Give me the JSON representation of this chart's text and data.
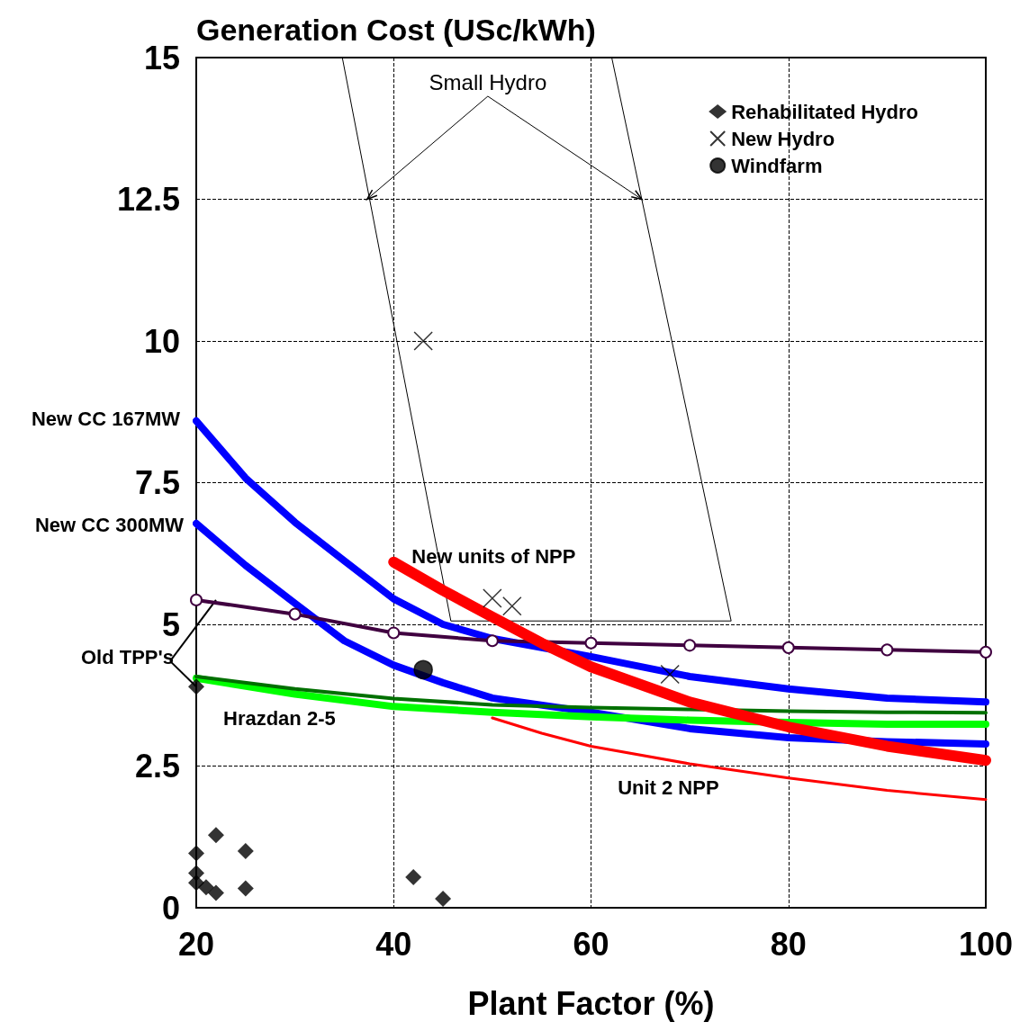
{
  "chart_data": {
    "type": "line",
    "ylabel": "Generation Cost (USc/kWh)",
    "xlabel": "Plant Factor (%)",
    "xlim": [
      20,
      100
    ],
    "xticks": [
      20,
      40,
      60,
      80,
      100
    ],
    "ylim": [
      0,
      15
    ],
    "yticks": [
      0,
      2.5,
      5,
      7.5,
      10,
      12.5,
      15
    ],
    "grid": true,
    "legend": "top right",
    "line_style": "solid",
    "annotations": [
      {
        "text": "Small Hydro",
        "x": 37.3,
        "y": 12.5
      }
    ],
    "series": [
      {
        "name": "New CC 167MW",
        "color": "#0000ff",
        "x": [
          20,
          25,
          30,
          35,
          40,
          45,
          50,
          60,
          70,
          80,
          90,
          100
        ],
        "values": [
          8.59,
          7.58,
          6.8,
          6.12,
          5.45,
          5.0,
          4.75,
          4.43,
          4.08,
          3.86,
          3.7,
          3.63
        ]
      },
      {
        "name": "New CC 300MW",
        "color": "#0000ff",
        "x": [
          20,
          25,
          30,
          35,
          40,
          45,
          50,
          60,
          70,
          80,
          90,
          100
        ],
        "values": [
          6.78,
          6.04,
          5.37,
          4.71,
          4.28,
          3.97,
          3.7,
          3.45,
          3.16,
          3.0,
          2.93,
          2.89
        ]
      },
      {
        "name": "New units of NPP",
        "color": "#ff0000",
        "x": [
          40,
          45,
          50,
          55,
          60,
          70,
          80,
          90,
          100
        ],
        "values": [
          6.1,
          5.6,
          5.13,
          4.67,
          4.25,
          3.63,
          3.19,
          2.85,
          2.6
        ]
      },
      {
        "name": "Unit 2 NPP",
        "color": "#ff0000",
        "x": [
          50,
          55,
          60,
          70,
          80,
          90,
          100
        ],
        "values": [
          3.35,
          3.08,
          2.85,
          2.54,
          2.29,
          2.07,
          1.91
        ]
      },
      {
        "name": "Hrazdan 2-5",
        "color": "#00ff00",
        "x": [
          20,
          30,
          40,
          50,
          60,
          70,
          80,
          90,
          100
        ],
        "values": [
          4.05,
          3.77,
          3.55,
          3.45,
          3.37,
          3.31,
          3.27,
          3.24,
          3.24
        ]
      },
      {
        "color": "#007000",
        "x": [
          20,
          30,
          40,
          50,
          60,
          70,
          80,
          90,
          100
        ],
        "values": [
          4.08,
          3.86,
          3.69,
          3.58,
          3.53,
          3.5,
          3.47,
          3.45,
          3.44
        ]
      },
      {
        "name": "Old TPP's",
        "color": "#400040",
        "marker": "circle",
        "x": [
          20,
          30,
          40,
          50,
          60,
          70,
          80,
          90,
          100
        ],
        "values": [
          5.43,
          5.18,
          4.85,
          4.71,
          4.67,
          4.63,
          4.59,
          4.55,
          4.51
        ]
      },
      {
        "color": "#000000",
        "x": [
          34.8,
          45.8,
          74.2,
          62.1
        ],
        "values": [
          15,
          5.06,
          5.06,
          15
        ]
      },
      {
        "type": "scatter",
        "name": "Rehabilitated Hydro",
        "color": "#000000",
        "marker": "diamond",
        "x": [
          20,
          20,
          20,
          20,
          21,
          22,
          22,
          25,
          25,
          42,
          45
        ],
        "values": [
          3.9,
          0.96,
          0.61,
          0.44,
          0.36,
          1.28,
          0.26,
          1.0,
          0.34,
          0.54,
          0.16
        ]
      },
      {
        "type": "scatter",
        "name": "New Hydro",
        "color": "#000000",
        "marker": "cross",
        "x": [
          43,
          50,
          52,
          68
        ],
        "values": [
          10.0,
          5.46,
          5.32,
          4.12
        ]
      },
      {
        "type": "scatter",
        "name": "Windfarm",
        "color": "#000000",
        "marker": "circle",
        "x": [
          43
        ],
        "values": [
          4.2
        ]
      }
    ]
  }
}
